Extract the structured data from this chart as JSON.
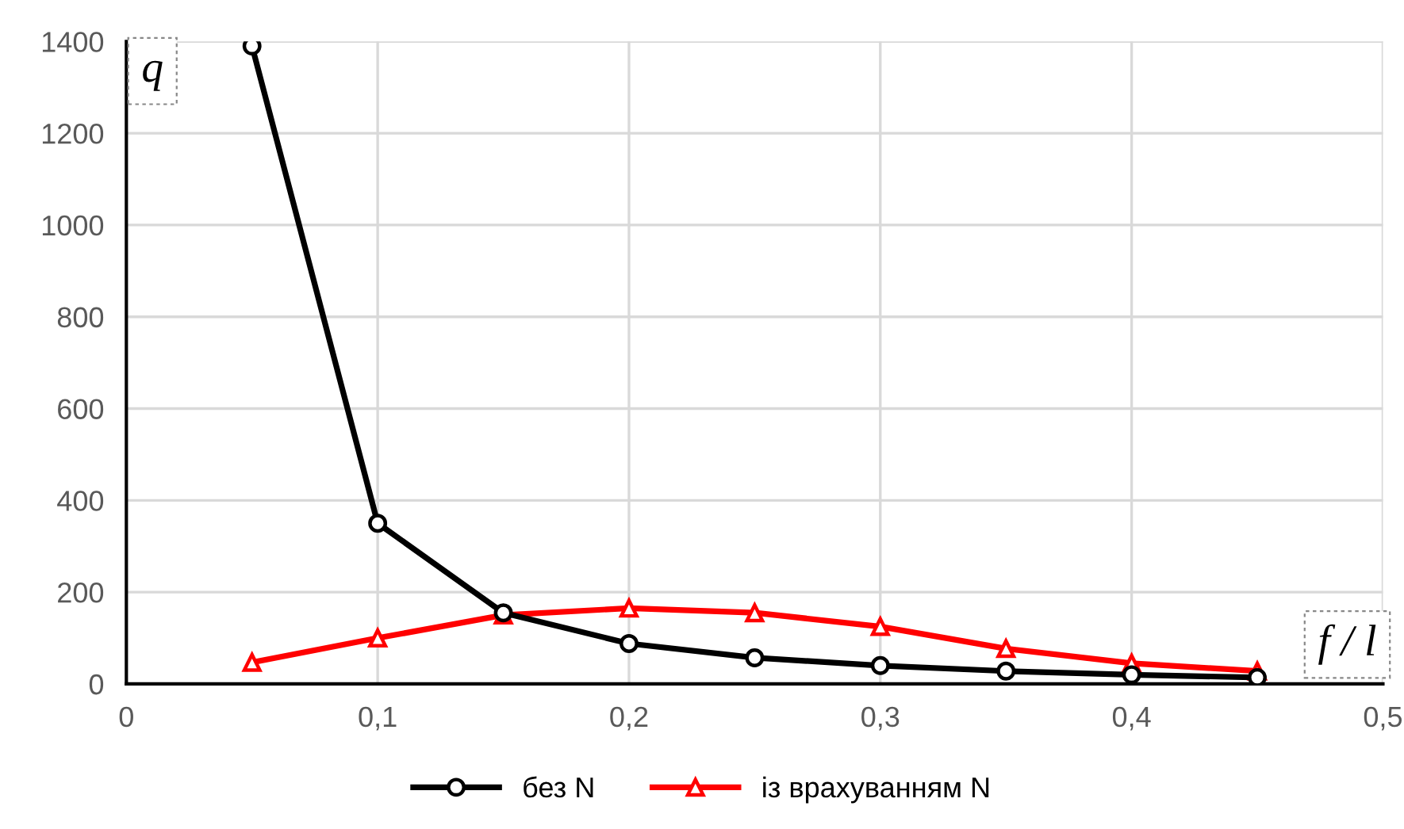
{
  "chart_data": {
    "type": "line",
    "xlabel": "f / l",
    "ylabel": "q",
    "x": [
      0.05,
      0.1,
      0.15,
      0.2,
      0.25,
      0.3,
      0.35,
      0.4,
      0.45
    ],
    "series": [
      {
        "name": "без N",
        "color": "#000000",
        "marker": "circle",
        "values": [
          1390,
          350,
          155,
          88,
          57,
          40,
          28,
          20,
          14
        ]
      },
      {
        "name": "із врахуванням N",
        "color": "#ff0000",
        "marker": "triangle",
        "values": [
          47,
          100,
          150,
          165,
          155,
          125,
          77,
          45,
          28
        ]
      }
    ],
    "xlim": [
      0,
      0.5
    ],
    "xticks": [
      0,
      {
        "value": 0.1,
        "label": "0,1"
      },
      {
        "value": 0.2,
        "label": "0,2"
      },
      {
        "value": 0.3,
        "label": "0,3"
      },
      {
        "value": 0.4,
        "label": "0,4"
      },
      {
        "value": 0.5,
        "label": "0,5"
      }
    ],
    "ylim": [
      0,
      1400
    ],
    "yticks": [
      0,
      200,
      400,
      600,
      800,
      1000,
      1200,
      1400
    ],
    "grid": true,
    "legend": "bottom",
    "line_style": "solid"
  }
}
